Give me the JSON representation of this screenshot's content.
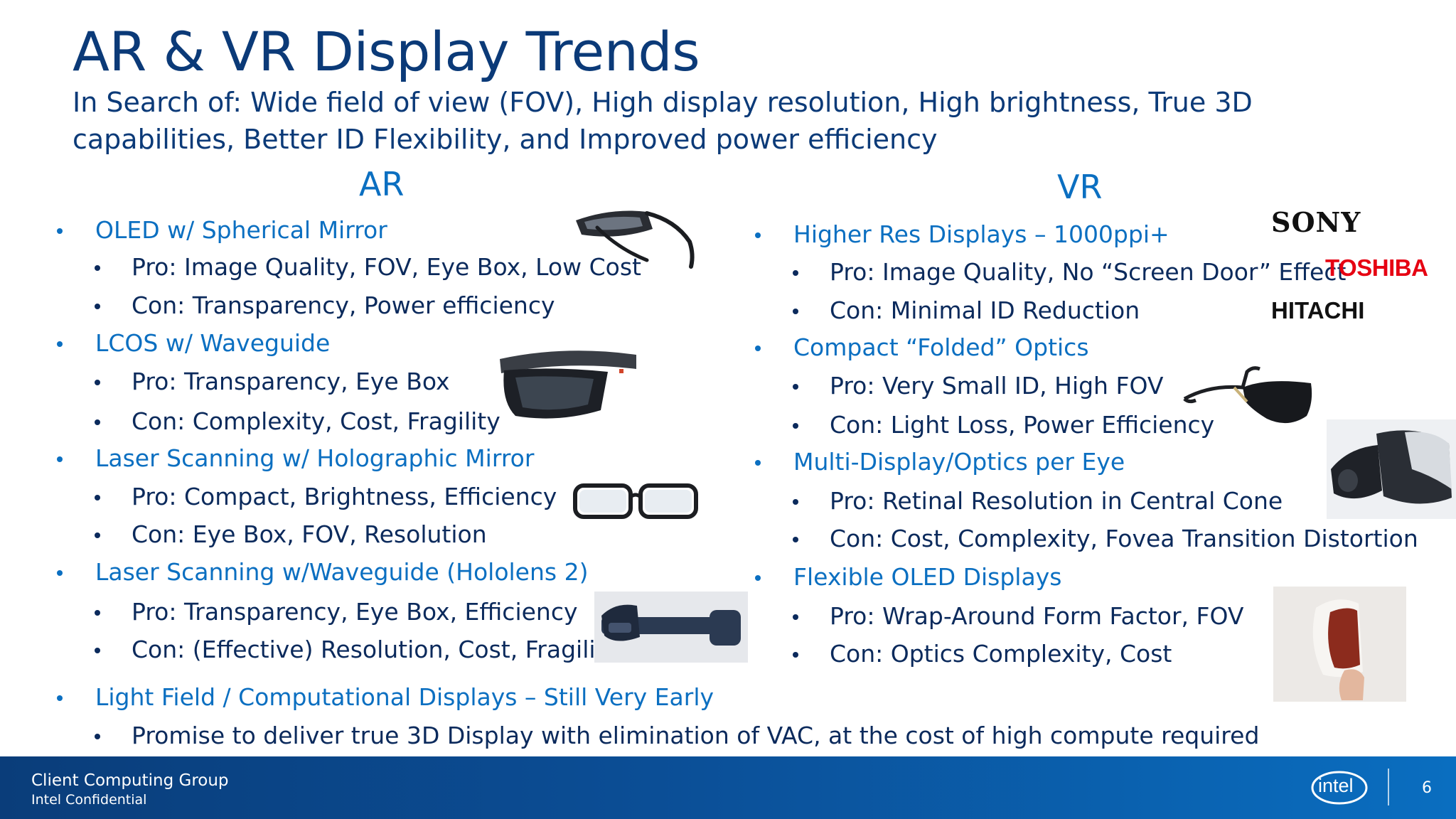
{
  "slide": {
    "title": "AR & VR Display Trends",
    "subtitle": "In Search of: Wide field of view (FOV), High display resolution, High brightness, True 3D capabilities, Better ID Flexibility, and Improved power efficiency",
    "page_number": "6"
  },
  "ar": {
    "heading": "AR",
    "items": [
      {
        "label": "OLED w/ Spherical Mirror",
        "pro": "Pro: Image Quality, FOV, Eye Box, Low Cost",
        "con": "Con: Transparency, Power efficiency"
      },
      {
        "label": "LCOS w/ Waveguide",
        "pro": "Pro: Transparency, Eye Box",
        "con": "Con: Complexity, Cost, Fragility"
      },
      {
        "label": "Laser Scanning w/ Holographic Mirror",
        "pro": "Pro: Compact, Brightness, Efficiency",
        "con": "Con: Eye Box, FOV, Resolution"
      },
      {
        "label": "Laser Scanning w/Waveguide (Hololens 2)",
        "pro": "Pro: Transparency, Eye Box, Efficiency",
        "con": "Con: (Effective) Resolution, Cost, Fragility"
      }
    ]
  },
  "vr": {
    "heading": "VR",
    "items": [
      {
        "label": "Higher Res Displays – 1000ppi+",
        "pro": "Pro: Image Quality, No “Screen Door” Effect",
        "con": "Con: Minimal ID Reduction"
      },
      {
        "label": "Compact “Folded” Optics",
        "pro": "Pro: Very Small ID, High FOV",
        "con": "Con: Light Loss, Power Efficiency"
      },
      {
        "label": "Multi-Display/Optics per Eye",
        "pro": "Pro: Retinal Resolution in Central Cone",
        "con": "Con: Cost, Complexity, Fovea Transition Distortion"
      },
      {
        "label": "Flexible OLED Displays",
        "pro": "Pro: Wrap-Around Form Factor, FOV",
        "con": "Con: Optics Complexity, Cost"
      }
    ]
  },
  "light_field": {
    "label": "Light Field / Computational Displays – Still Very Early",
    "detail": "Promise to deliver true 3D Display with elimination of VAC, at the cost of high compute required"
  },
  "logos": {
    "sony": "SONY",
    "toshiba": "TOSHIBA",
    "hitachi": "HITACHI",
    "intel": "intel"
  },
  "footer": {
    "group": "Client Computing Group",
    "confidential": "Intel Confidential"
  },
  "colors": {
    "title": "#0b3a78",
    "accent": "#0b6fc1",
    "text": "#0b2a5c",
    "footer": "#0b4e96",
    "toshiba_red": "#e60012"
  }
}
